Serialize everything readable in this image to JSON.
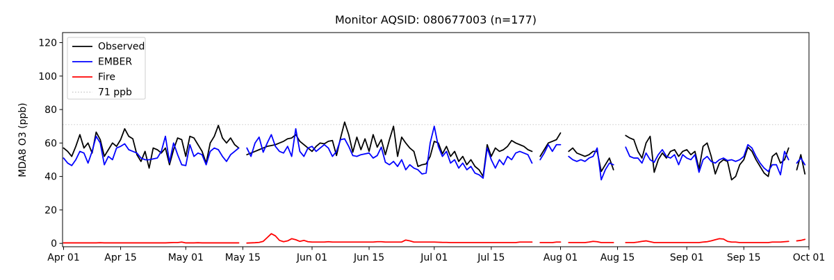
{
  "title": "Monitor AQSID: 080677003 (n=177)",
  "chart_data": {
    "type": "line",
    "title": "Monitor AQSID: 080677003 (n=177)",
    "xlabel": "",
    "ylabel": "MDA8 O3 (ppb)",
    "x_unit": "day",
    "x_start": "Apr 01",
    "x_end": "Oct 01",
    "n_points": 177,
    "ylim": [
      -2,
      126
    ],
    "yticks": [
      0,
      20,
      40,
      60,
      80,
      100,
      120
    ],
    "xtick_days": [
      0,
      14,
      30,
      44,
      61,
      75,
      91,
      105,
      122,
      136,
      153,
      167,
      183
    ],
    "xtick_labels": [
      "Apr 01",
      "Apr 15",
      "May 01",
      "May 15",
      "Jun 01",
      "Jun 15",
      "Jul 01",
      "Jul 15",
      "Aug 01",
      "Aug 15",
      "Sep 01",
      "Sep 15",
      "Oct 01"
    ],
    "grid": false,
    "legend_position": "upper-left",
    "threshold": {
      "label": "71 ppb",
      "value": 71,
      "color": "#d3d3d3",
      "style": "dotted"
    },
    "legend": [
      {
        "name": "Observed",
        "color": "#000000",
        "dotted": false
      },
      {
        "name": "EMBER",
        "color": "#0000ff",
        "dotted": false
      },
      {
        "name": "Fire",
        "color": "#ff0000",
        "dotted": false
      },
      {
        "name": "71 ppb",
        "color": "#d3d3d3",
        "dotted": true
      }
    ],
    "series": [
      {
        "name": "Observed",
        "color": "#000000",
        "values": [
          57,
          55,
          52,
          58,
          65,
          57,
          60,
          54,
          66.5,
          62,
          52,
          56,
          60,
          58,
          62,
          68.5,
          64,
          62.5,
          53,
          49,
          55,
          45,
          57,
          56,
          54,
          57,
          47,
          56,
          63,
          62,
          52,
          64,
          63,
          59,
          55,
          48,
          60,
          64,
          70.5,
          63,
          60,
          63,
          59,
          57,
          null,
          53,
          54,
          55,
          56,
          57,
          58,
          58.5,
          59,
          60,
          61,
          62.5,
          63,
          65,
          61,
          59,
          57,
          55,
          58,
          60,
          59.5,
          61,
          61.5,
          52.5,
          63,
          72.5,
          65,
          54.5,
          63.5,
          56,
          62.5,
          55,
          65,
          57.5,
          62,
          53,
          62,
          70,
          52,
          63.5,
          60,
          57,
          55,
          46,
          47,
          47.5,
          52,
          61,
          60,
          53.5,
          58,
          52,
          55,
          49,
          52,
          47,
          50,
          46,
          44,
          40,
          59,
          52,
          57,
          55,
          56,
          58,
          61.5,
          60,
          59,
          58,
          56,
          55,
          null,
          52,
          56,
          60,
          61,
          62,
          66,
          null,
          55,
          57,
          54,
          53,
          52,
          53,
          55,
          55,
          43,
          47,
          51,
          44,
          null,
          null,
          64.5,
          63,
          62,
          55,
          51,
          60,
          64,
          42.5,
          50,
          54,
          51,
          55,
          56,
          52,
          55,
          56,
          53,
          55,
          44.5,
          58,
          60,
          52,
          41.5,
          48,
          50,
          49,
          38,
          40,
          47,
          50,
          57.5,
          55,
          50,
          46,
          42,
          40,
          52,
          54,
          48,
          50,
          57,
          null,
          44,
          53,
          41.5,
          null
        ]
      },
      {
        "name": "EMBER",
        "color": "#0000ff",
        "values": [
          51,
          48,
          46.5,
          50,
          55,
          54,
          48,
          55,
          64,
          60,
          47,
          52,
          50,
          57,
          58,
          59.5,
          56,
          55,
          54,
          51,
          50,
          50,
          50.5,
          51,
          55,
          64,
          48.5,
          60,
          53,
          47,
          46.5,
          59,
          52,
          54,
          53,
          47,
          55,
          57,
          56,
          52,
          49,
          53,
          55,
          57,
          null,
          57,
          52,
          60,
          63.5,
          54.5,
          60,
          65,
          58,
          55,
          54,
          58,
          52,
          68.5,
          55,
          52,
          57,
          58,
          55,
          57,
          59,
          57,
          52,
          55,
          62,
          62.5,
          58,
          52.5,
          52,
          53,
          53.5,
          54,
          51,
          52.5,
          57.5,
          48.5,
          47,
          49,
          46,
          50,
          44,
          47,
          45,
          44,
          41.5,
          42,
          60,
          70,
          58,
          52,
          55,
          48,
          50,
          45,
          48,
          44,
          46,
          42,
          41,
          39,
          57,
          50,
          45,
          50,
          47,
          52,
          50,
          54,
          55,
          54,
          53,
          48,
          null,
          50,
          54,
          59,
          55,
          59,
          59,
          null,
          52,
          50,
          49,
          50,
          49,
          51,
          52,
          57,
          38,
          44,
          48,
          47,
          null,
          null,
          57.5,
          52,
          51,
          51,
          48,
          54,
          50,
          48.5,
          53,
          56,
          52,
          51,
          53,
          47,
          53,
          51,
          50,
          53,
          42.5,
          50,
          52,
          49,
          48,
          50,
          51,
          49.5,
          50,
          49,
          50,
          52,
          59,
          57,
          52,
          48,
          45,
          43,
          47,
          47,
          41,
          55,
          50,
          null,
          48,
          51,
          47,
          null
        ]
      },
      {
        "name": "Fire",
        "color": "#ff0000",
        "values": [
          0.3,
          0.3,
          0.3,
          0.3,
          0.3,
          0.3,
          0.3,
          0.3,
          0.3,
          0.4,
          0.3,
          0.3,
          0.3,
          0.3,
          0.3,
          0.3,
          0.3,
          0.3,
          0.3,
          0.3,
          0.3,
          0.3,
          0.3,
          0.3,
          0.3,
          0.3,
          0.4,
          0.5,
          0.5,
          0.8,
          0.3,
          0.3,
          0.3,
          0.4,
          0.3,
          0.3,
          0.3,
          0.3,
          0.3,
          0.3,
          0.3,
          0.3,
          0.3,
          0.3,
          null,
          0.2,
          0.3,
          0.4,
          0.6,
          1.2,
          3.5,
          5.8,
          4.5,
          1.8,
          1.0,
          1.5,
          2.8,
          2.2,
          1.2,
          1.8,
          1.0,
          0.8,
          0.8,
          0.8,
          0.8,
          1.0,
          0.8,
          0.8,
          0.8,
          0.8,
          0.8,
          0.8,
          0.8,
          0.8,
          0.8,
          0.8,
          0.8,
          1.0,
          1.0,
          0.8,
          0.8,
          0.8,
          0.8,
          0.8,
          2.0,
          1.5,
          0.8,
          0.8,
          0.8,
          0.8,
          0.8,
          0.8,
          0.7,
          0.6,
          0.6,
          0.5,
          0.5,
          0.5,
          0.5,
          0.5,
          0.5,
          0.5,
          0.5,
          0.5,
          0.5,
          0.5,
          0.5,
          0.5,
          0.5,
          0.5,
          0.5,
          0.5,
          0.8,
          0.8,
          0.8,
          0.8,
          null,
          0.5,
          0.5,
          0.5,
          0.5,
          0.8,
          0.8,
          null,
          0.5,
          0.5,
          0.5,
          0.5,
          0.5,
          0.8,
          1.2,
          1.0,
          0.5,
          0.5,
          0.5,
          0.5,
          null,
          null,
          0.5,
          0.5,
          0.5,
          0.8,
          1.2,
          1.5,
          1.0,
          0.5,
          0.5,
          0.5,
          0.5,
          0.5,
          0.5,
          0.5,
          0.5,
          0.5,
          0.5,
          0.5,
          0.5,
          0.8,
          1.0,
          1.5,
          2.2,
          2.8,
          2.6,
          1.2,
          0.8,
          0.8,
          0.5,
          0.5,
          0.5,
          0.5,
          0.5,
          0.5,
          0.5,
          0.5,
          0.8,
          0.8,
          0.8,
          1.0,
          1.2,
          null,
          1.5,
          1.8,
          2.4,
          null
        ]
      }
    ]
  }
}
